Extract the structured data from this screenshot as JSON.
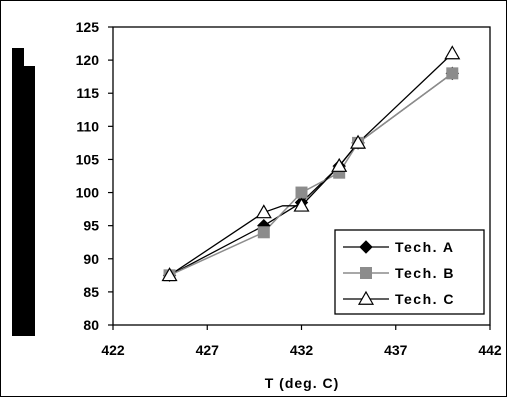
{
  "chart_data": {
    "type": "line",
    "xlabel": "T (deg. C)",
    "ylabel": "",
    "xlim": [
      422,
      442
    ],
    "ylim": [
      80,
      125
    ],
    "xticks": [
      422,
      427,
      432,
      437,
      442
    ],
    "yticks": [
      80,
      85,
      90,
      95,
      100,
      105,
      110,
      115,
      120,
      125
    ],
    "grid": false,
    "legend": "bottom-right",
    "series": [
      {
        "name": "Tech. A",
        "marker": "diamond",
        "color": "#000000",
        "points": [
          [
            425,
            87.5
          ],
          [
            430,
            95
          ],
          [
            432,
            98.5
          ],
          [
            434,
            104
          ],
          [
            435,
            107.5
          ],
          [
            440,
            118
          ]
        ]
      },
      {
        "name": "Tech. B",
        "marker": "square",
        "color": "#8c8c8c",
        "points": [
          [
            425,
            87.5
          ],
          [
            430,
            94
          ],
          [
            432,
            100
          ],
          [
            434,
            103
          ],
          [
            435,
            107.5
          ],
          [
            440,
            118
          ]
        ]
      },
      {
        "name": "Tech. C",
        "marker": "triangle",
        "color": "#000000",
        "points": [
          [
            425,
            87.5
          ],
          [
            430,
            97
          ],
          [
            431,
            98
          ],
          [
            432,
            98
          ],
          [
            434,
            104
          ],
          [
            435,
            107.5
          ],
          [
            440,
            121
          ]
        ]
      }
    ]
  }
}
